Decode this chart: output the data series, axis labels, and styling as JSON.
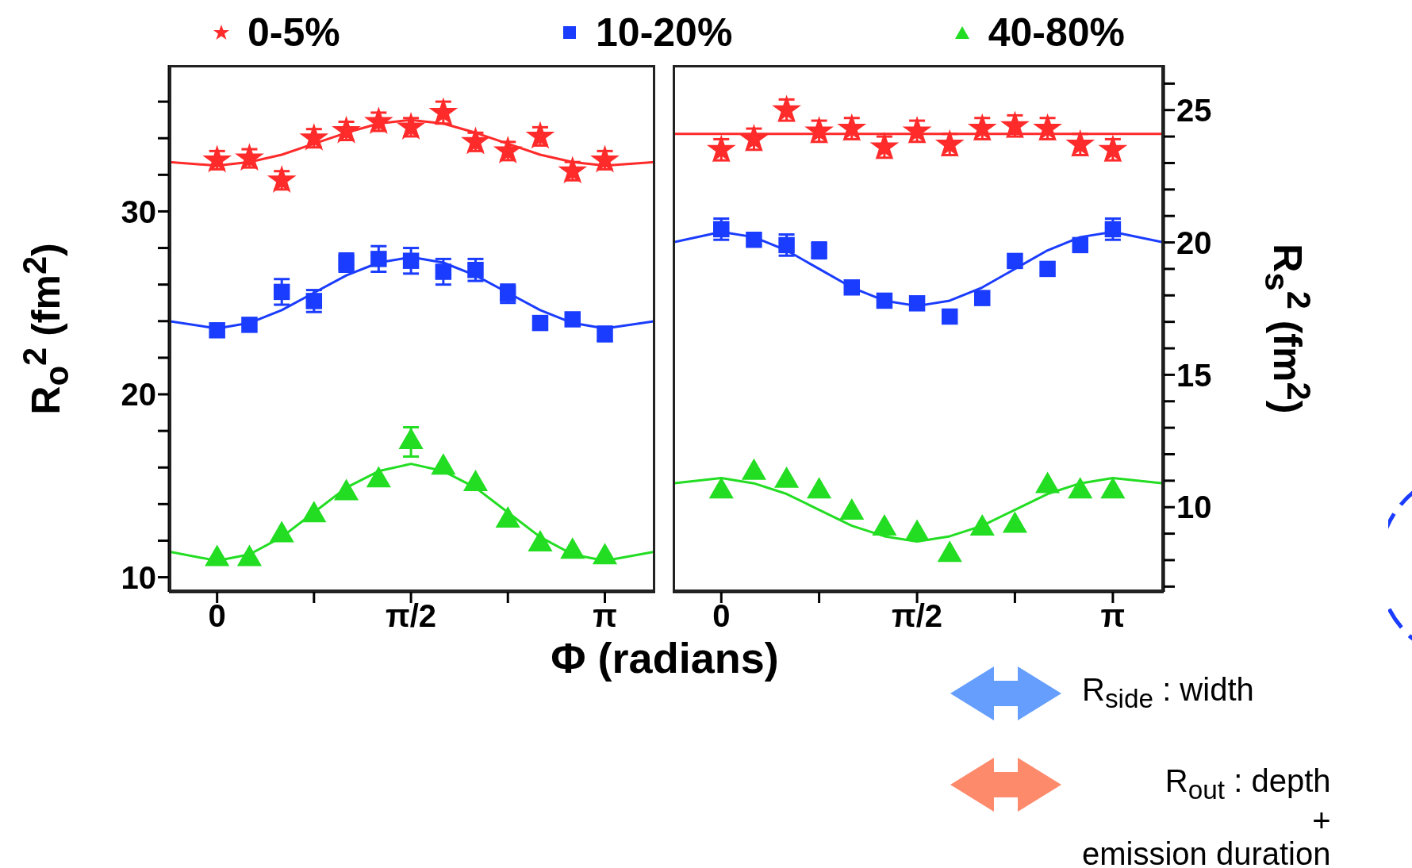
{
  "chart_data": [
    {
      "type": "scatter",
      "ylabel": "R$_{o}$$^{2}$ (fm$^{2}$)",
      "xlabel": "Φ (radians)",
      "legend": "top",
      "x": [
        0,
        0.262,
        0.524,
        0.785,
        1.047,
        1.309,
        1.571,
        1.833,
        2.094,
        2.356,
        2.618,
        2.88,
        3.142
      ],
      "xlim": [
        -0.39,
        3.55
      ],
      "xticks": [
        0,
        {
          "value": 0.785,
          "label": null
        },
        {
          "value": 1.571,
          "label": "π/2"
        },
        {
          "value": 2.356,
          "label": null
        },
        {
          "value": 3.142,
          "label": "π"
        }
      ],
      "ylim": [
        9.2,
        38
      ],
      "yticks": [
        10,
        {
          "value": 12,
          "label": null
        },
        {
          "value": 14,
          "label": null
        },
        {
          "value": 16,
          "label": null
        },
        {
          "value": 18,
          "label": null
        },
        20,
        {
          "value": 22,
          "label": null
        },
        {
          "value": 24,
          "label": null
        },
        {
          "value": 26,
          "label": null
        },
        {
          "value": 28,
          "label": null
        },
        30,
        {
          "value": 32,
          "label": null
        },
        {
          "value": 34,
          "label": null
        },
        {
          "value": 36,
          "label": null
        }
      ],
      "series": [
        {
          "name": "0-5%",
          "marker": "star",
          "color": "#ff2a2a",
          "values": [
            32.8,
            32.9,
            31.7,
            34.0,
            34.4,
            34.9,
            34.6,
            35.4,
            33.8,
            33.3,
            34.1,
            32.2,
            32.8
          ],
          "errors": [
            0.5,
            0.5,
            0.5,
            0.5,
            0.5,
            0.5,
            0.5,
            0.6,
            0.5,
            0.5,
            0.5,
            0.5,
            0.5
          ]
        },
        {
          "name": "10-20%",
          "marker": "square",
          "color": "#1a3cff",
          "values": [
            23.5,
            23.8,
            25.6,
            25.1,
            27.2,
            27.4,
            27.3,
            26.7,
            26.8,
            25.5,
            23.9,
            24.1,
            23.3
          ],
          "errors": [
            null,
            null,
            0.7,
            0.6,
            0.5,
            0.7,
            0.7,
            0.7,
            0.6,
            0.5,
            null,
            null,
            0.4
          ]
        },
        {
          "name": "40-80%",
          "marker": "triangle",
          "color": "#22dd22",
          "values": [
            11.0,
            11.0,
            12.3,
            13.4,
            14.6,
            15.3,
            17.4,
            16.0,
            15.1,
            13.1,
            11.8,
            11.4,
            11.1
          ],
          "errors": [
            null,
            null,
            null,
            null,
            null,
            null,
            0.8,
            null,
            null,
            null,
            null,
            null,
            null
          ]
        },
        {
          "type": "line",
          "color": "#ff2a2a",
          "x": [
            -0.39,
            0,
            0.262,
            0.524,
            0.785,
            1.047,
            1.309,
            1.571,
            1.833,
            2.094,
            2.356,
            2.618,
            2.88,
            3.142,
            3.55
          ],
          "values": [
            32.7,
            32.5,
            32.7,
            33.1,
            33.7,
            34.3,
            34.8,
            35.0,
            34.8,
            34.3,
            33.7,
            33.1,
            32.7,
            32.5,
            32.7
          ]
        },
        {
          "type": "line",
          "color": "#1a3cff",
          "x": [
            -0.39,
            0,
            0.262,
            0.524,
            0.785,
            1.047,
            1.309,
            1.571,
            1.833,
            2.094,
            2.356,
            2.618,
            2.88,
            3.142,
            3.55
          ],
          "values": [
            24.0,
            23.6,
            23.9,
            24.6,
            25.55,
            26.5,
            27.2,
            27.5,
            27.2,
            26.5,
            25.55,
            24.6,
            23.9,
            23.6,
            24.0
          ]
        },
        {
          "type": "line",
          "color": "#22dd22",
          "x": [
            -0.39,
            0,
            0.262,
            0.524,
            0.785,
            1.047,
            1.309,
            1.571,
            1.833,
            2.094,
            2.356,
            2.618,
            2.88,
            3.142,
            3.55
          ],
          "values": [
            11.4,
            10.9,
            11.25,
            12.2,
            13.55,
            14.9,
            15.8,
            16.2,
            15.8,
            14.9,
            13.55,
            12.2,
            11.25,
            10.9,
            11.4
          ]
        }
      ]
    },
    {
      "type": "scatter",
      "ylabel": "R$_{s}$$^{2}$ (fm$^{2}$)",
      "annotations": [
        "R$_{side}$ : width",
        "R$_{out}$  :  depth\n+\nemission duration"
      ],
      "x": [
        0,
        0.262,
        0.524,
        0.785,
        1.047,
        1.309,
        1.571,
        1.833,
        2.094,
        2.356,
        2.618,
        2.88,
        3.142
      ],
      "xlim": [
        -0.39,
        3.55
      ],
      "xticks": [
        0,
        {
          "value": 0.785,
          "label": null
        },
        {
          "value": 1.571,
          "label": "π/2"
        },
        {
          "value": 2.356,
          "label": null
        },
        {
          "value": 3.142,
          "label": "π"
        }
      ],
      "ylim": [
        6.8,
        26.7
      ],
      "yticks": [
        {
          "value": 7,
          "label": null
        },
        {
          "value": 8,
          "label": null
        },
        {
          "value": 9,
          "label": null
        },
        10,
        {
          "value": 11,
          "label": null
        },
        {
          "value": 12,
          "label": null
        },
        {
          "value": 13,
          "label": null
        },
        {
          "value": 14,
          "label": null
        },
        15,
        {
          "value": 16,
          "label": null
        },
        {
          "value": 17,
          "label": null
        },
        {
          "value": 18,
          "label": null
        },
        {
          "value": 19,
          "label": null
        },
        20,
        {
          "value": 21,
          "label": null
        },
        {
          "value": 22,
          "label": null
        },
        {
          "value": 23,
          "label": null
        },
        {
          "value": 24,
          "label": null
        },
        25,
        {
          "value": 26,
          "label": null
        }
      ],
      "series": [
        {
          "marker": "star",
          "color": "#ff2a2a",
          "values": [
            23.5,
            23.9,
            25.0,
            24.2,
            24.3,
            23.6,
            24.2,
            23.7,
            24.3,
            24.4,
            24.3,
            23.7,
            23.5
          ],
          "errors": [
            0.4,
            0.4,
            0.4,
            0.4,
            0.4,
            0.4,
            0.4,
            0.4,
            0.4,
            0.4,
            0.4,
            0.4,
            0.4
          ]
        },
        {
          "marker": "square",
          "color": "#1a3cff",
          "values": [
            20.5,
            20.1,
            19.9,
            19.7,
            18.3,
            17.8,
            17.7,
            17.2,
            17.9,
            19.3,
            19.0,
            19.9,
            20.5
          ],
          "errors": [
            0.4,
            null,
            0.4,
            0.3,
            null,
            null,
            null,
            null,
            null,
            null,
            null,
            null,
            0.4
          ]
        },
        {
          "marker": "triangle",
          "color": "#22dd22",
          "values": [
            10.6,
            11.3,
            11.0,
            10.6,
            9.8,
            9.2,
            9.0,
            8.2,
            9.2,
            9.3,
            10.8,
            10.6,
            10.6
          ]
        },
        {
          "type": "line",
          "color": "#ff2a2a",
          "x": [
            -0.39,
            3.55
          ],
          "values": [
            24.1,
            24.1
          ]
        },
        {
          "type": "line",
          "color": "#1a3cff",
          "x": [
            -0.39,
            0,
            0.262,
            0.524,
            0.785,
            1.047,
            1.309,
            1.571,
            1.833,
            2.094,
            2.356,
            2.618,
            2.88,
            3.142,
            3.55
          ],
          "values": [
            20.0,
            20.4,
            20.2,
            19.7,
            19.0,
            18.3,
            17.8,
            17.6,
            17.8,
            18.3,
            19.0,
            19.7,
            20.2,
            20.4,
            20.0
          ]
        },
        {
          "type": "line",
          "color": "#22dd22",
          "x": [
            -0.39,
            0,
            0.262,
            0.524,
            0.785,
            1.047,
            1.309,
            1.571,
            1.833,
            2.094,
            2.356,
            2.618,
            2.88,
            3.142,
            3.55
          ],
          "values": [
            10.9,
            11.1,
            10.9,
            10.5,
            9.9,
            9.3,
            8.9,
            8.7,
            8.9,
            9.3,
            9.9,
            10.5,
            10.9,
            11.1,
            10.9
          ]
        }
      ]
    }
  ]
}
